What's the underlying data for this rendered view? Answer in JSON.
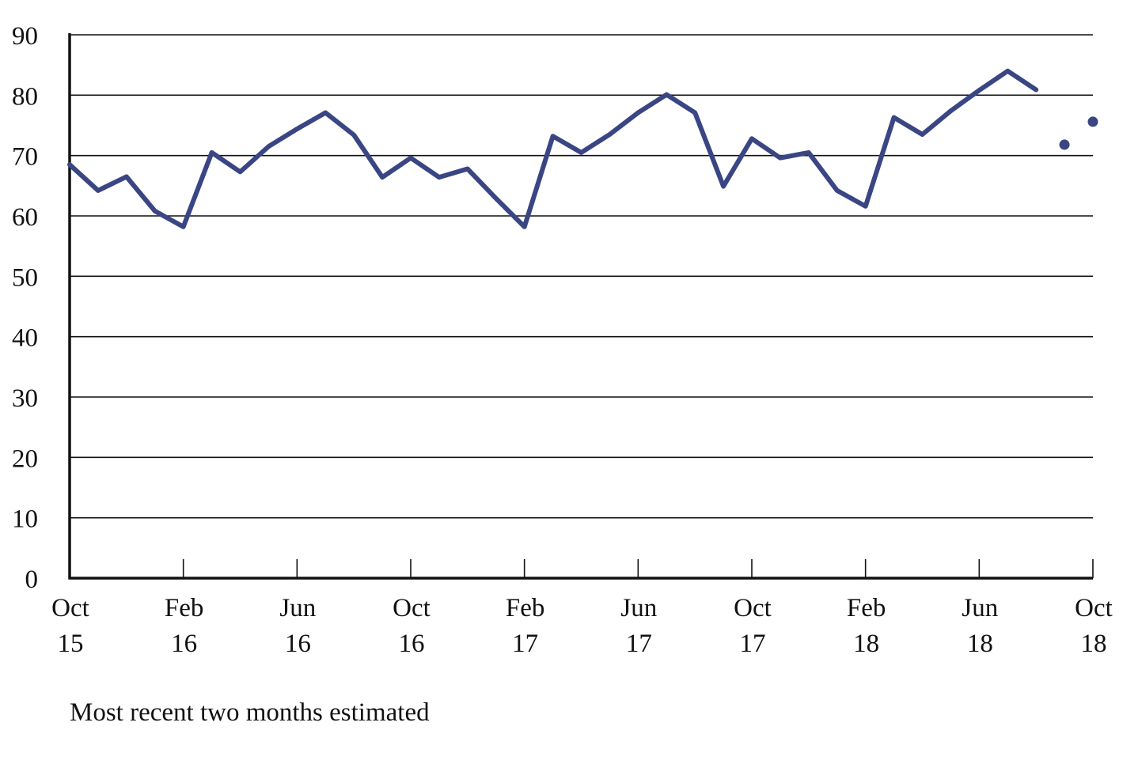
{
  "chart_data": {
    "type": "line",
    "title": "",
    "xlabel": "",
    "ylabel": "",
    "ylim": [
      0,
      90
    ],
    "y_ticks": [
      0,
      10,
      20,
      30,
      40,
      50,
      60,
      70,
      80,
      90
    ],
    "grid": "horizontal",
    "x_ticks": [
      {
        "index": 0,
        "line1": "Oct",
        "line2": "15"
      },
      {
        "index": 4,
        "line1": "Feb",
        "line2": "16"
      },
      {
        "index": 8,
        "line1": "Jun",
        "line2": "16"
      },
      {
        "index": 12,
        "line1": "Oct",
        "line2": "16"
      },
      {
        "index": 16,
        "line1": "Feb",
        "line2": "17"
      },
      {
        "index": 20,
        "line1": "Jun",
        "line2": "17"
      },
      {
        "index": 24,
        "line1": "Oct",
        "line2": "17"
      },
      {
        "index": 28,
        "line1": "Feb",
        "line2": "18"
      },
      {
        "index": 32,
        "line1": "Jun",
        "line2": "18"
      },
      {
        "index": 36,
        "line1": "Oct",
        "line2": "18"
      }
    ],
    "series": [
      {
        "style": "line",
        "x": [
          "Oct 15",
          "Nov 15",
          "Dec 15",
          "Jan 16",
          "Feb 16",
          "Mar 16",
          "Apr 16",
          "May 16",
          "Jun 16",
          "Jul 16",
          "Aug 16",
          "Sep 16",
          "Oct 16",
          "Nov 16",
          "Dec 16",
          "Jan 17",
          "Feb 17",
          "Mar 17",
          "Apr 17",
          "May 17",
          "Jun 17",
          "Jul 17",
          "Aug 17",
          "Sep 17",
          "Oct 17",
          "Nov 17",
          "Dec 17",
          "Jan 18",
          "Feb 18",
          "Mar 18",
          "Apr 18",
          "May 18",
          "Jun 18",
          "Jul 18",
          "Aug 18"
        ],
        "values": [
          68.5,
          64.2,
          66.5,
          60.8,
          58.2,
          70.5,
          67.3,
          71.5,
          74.4,
          77.1,
          73.4,
          66.4,
          69.6,
          66.4,
          67.8,
          62.9,
          58.2,
          73.2,
          70.5,
          73.5,
          77.1,
          80.1,
          77.1,
          64.9,
          72.8,
          69.6,
          70.5,
          64.2,
          61.6,
          76.3,
          73.5,
          77.4,
          80.8,
          84.0,
          80.9
        ],
        "color": "#3a4683"
      },
      {
        "style": "points",
        "x": [
          "Sep 18",
          "Oct 18"
        ],
        "values": [
          71.8,
          75.6
        ],
        "color": "#3a4683"
      }
    ],
    "footnote": "Most recent two months estimated"
  }
}
